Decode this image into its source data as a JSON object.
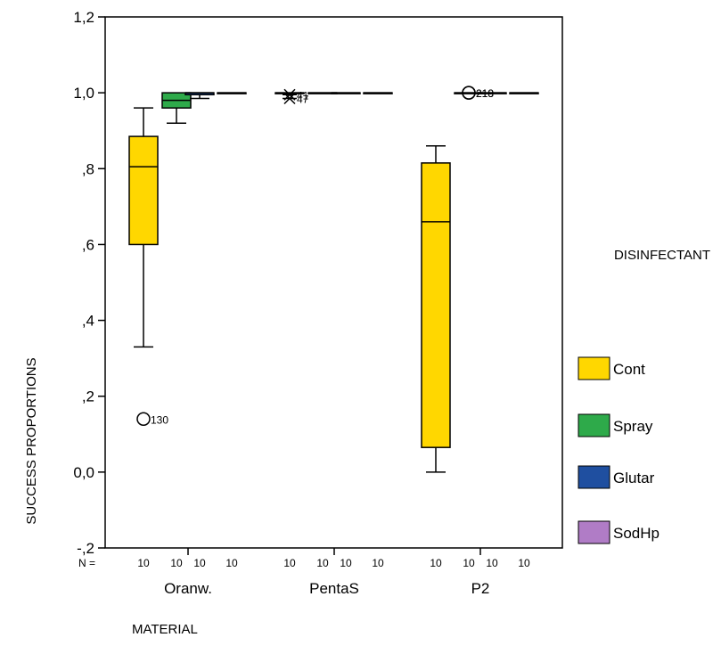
{
  "chart_data": {
    "type": "box",
    "ylabel": "SUCCESS PROPORTIONS",
    "xlabel": "MATERIAL",
    "ylim": [
      -0.2,
      1.2
    ],
    "yticks": [
      {
        "value": 1.2,
        "label": "1,2"
      },
      {
        "value": 1.0,
        "label": "1,0"
      },
      {
        "value": 0.8,
        "label": ",8"
      },
      {
        "value": 0.6,
        "label": ",6"
      },
      {
        "value": 0.4,
        "label": ",4"
      },
      {
        "value": 0.2,
        "label": ",2"
      },
      {
        "value": 0.0,
        "label": "0,0"
      },
      {
        "value": -0.2,
        "label": "-,2"
      }
    ],
    "categories": [
      "Oranw.",
      "PentaS",
      "P2"
    ],
    "n_label": "N =",
    "legend_title": "DISINFECTANT",
    "series": [
      {
        "name": "Cont",
        "color": "#FFD700"
      },
      {
        "name": "Spray",
        "color": "#2EAA4A"
      },
      {
        "name": "Glutar",
        "color": "#1F4FA0"
      },
      {
        "name": "SodHp",
        "color": "#B07CC6"
      }
    ],
    "boxes": [
      {
        "category": "Oranw.",
        "series": "Cont",
        "n": "10",
        "whisker_low": 0.33,
        "q1": 0.6,
        "median": 0.805,
        "q3": 0.885,
        "whisker_high": 0.96
      },
      {
        "category": "Oranw.",
        "series": "Spray",
        "n": "10",
        "whisker_low": 0.92,
        "q1": 0.96,
        "median": 0.98,
        "q3": 1.0,
        "whisker_high": 1.0
      },
      {
        "category": "Oranw.",
        "series": "Glutar",
        "n": "10",
        "whisker_low": 0.985,
        "q1": 0.995,
        "median": 1.0,
        "q3": 1.0,
        "whisker_high": 1.0
      },
      {
        "category": "Oranw.",
        "series": "SodHp",
        "n": "10",
        "whisker_low": 1.0,
        "q1": 1.0,
        "median": 1.0,
        "q3": 1.0,
        "whisker_high": 1.0
      },
      {
        "category": "PentaS",
        "series": "Cont",
        "n": "10",
        "whisker_low": 1.0,
        "q1": 1.0,
        "median": 1.0,
        "q3": 1.0,
        "whisker_high": 1.0
      },
      {
        "category": "PentaS",
        "series": "Spray",
        "n": "10",
        "whisker_low": 1.0,
        "q1": 1.0,
        "median": 1.0,
        "q3": 1.0,
        "whisker_high": 1.0
      },
      {
        "category": "PentaS",
        "series": "Glutar",
        "n": "10",
        "whisker_low": 1.0,
        "q1": 1.0,
        "median": 1.0,
        "q3": 1.0,
        "whisker_high": 1.0
      },
      {
        "category": "PentaS",
        "series": "SodHp",
        "n": "10",
        "whisker_low": 1.0,
        "q1": 1.0,
        "median": 1.0,
        "q3": 1.0,
        "whisker_high": 1.0
      },
      {
        "category": "P2",
        "series": "Cont",
        "n": "10",
        "whisker_low": 0.0,
        "q1": 0.065,
        "median": 0.66,
        "q3": 0.815,
        "whisker_high": 0.86
      },
      {
        "category": "P2",
        "series": "Spray",
        "n": "10",
        "whisker_low": 1.0,
        "q1": 1.0,
        "median": 1.0,
        "q3": 1.0,
        "whisker_high": 1.0
      },
      {
        "category": "P2",
        "series": "Glutar",
        "n": "10",
        "whisker_low": 1.0,
        "q1": 1.0,
        "median": 1.0,
        "q3": 1.0,
        "whisker_high": 1.0
      },
      {
        "category": "P2",
        "series": "SodHp",
        "n": "10",
        "whisker_low": 1.0,
        "q1": 1.0,
        "median": 1.0,
        "q3": 1.0,
        "whisker_high": 1.0
      }
    ],
    "outliers": [
      {
        "category": "Oranw.",
        "series": "Cont",
        "value": 0.14,
        "marker": "circle",
        "label": "130"
      },
      {
        "category": "PentaS",
        "series": "Cont",
        "value": 0.995,
        "marker": "star",
        "label": "41"
      },
      {
        "category": "PentaS",
        "series": "Cont",
        "value": 0.985,
        "marker": "star",
        "label": "47"
      },
      {
        "category": "P2",
        "series": "Spray",
        "value": 1.0,
        "marker": "circle",
        "label": "219"
      },
      {
        "category": "P2",
        "series": "Spray",
        "value": 1.0,
        "marker": "circle",
        "label": "218"
      }
    ]
  }
}
